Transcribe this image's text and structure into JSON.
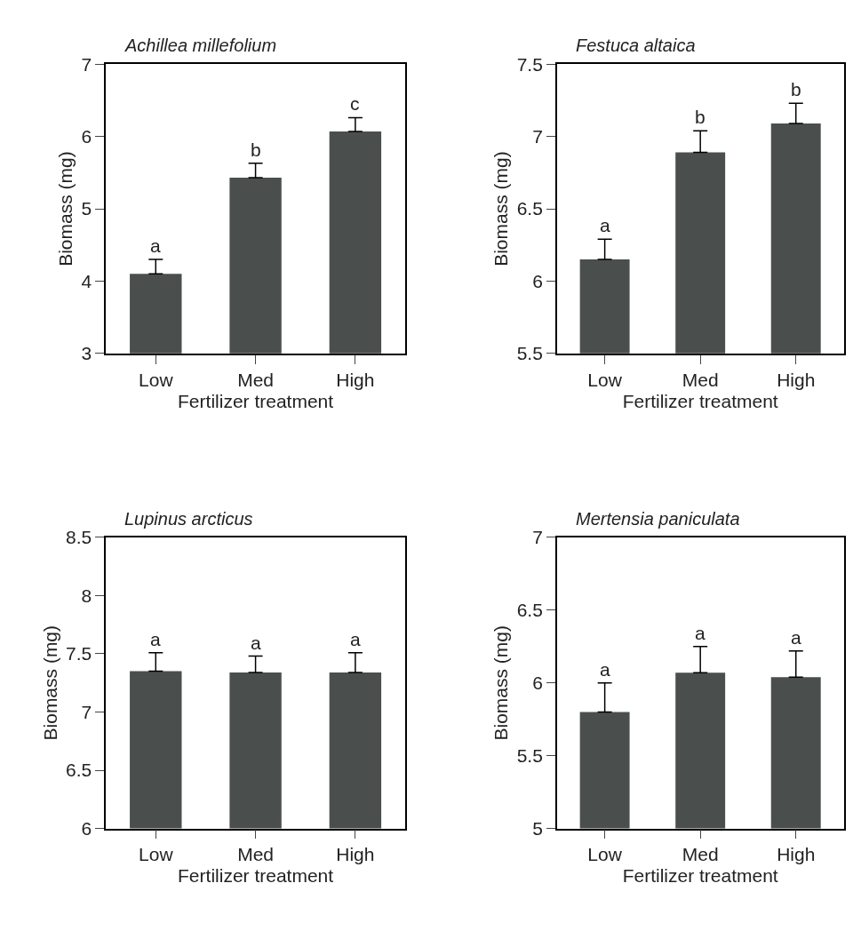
{
  "chart_data": [
    {
      "type": "bar",
      "title": "Achillea millefolium",
      "xlabel": "Fertilizer treatment",
      "ylabel": "Biomass (mg)",
      "categories": [
        "Low",
        "Med",
        "High"
      ],
      "values": [
        4.1,
        5.43,
        6.07
      ],
      "color": "#4a4f4d",
      "errors": [
        [
          4.1,
          4.3
        ],
        [
          5.43,
          5.63
        ],
        [
          6.07,
          6.26
        ]
      ],
      "ylim": [
        3,
        7
      ],
      "yticks": [
        3,
        4,
        5,
        6,
        7
      ],
      "annotations": [
        {
          "text": "a",
          "x": "Low",
          "y": 4.3
        },
        {
          "text": "b",
          "x": "Med",
          "y": 5.63
        },
        {
          "text": "c",
          "x": "High",
          "y": 6.26
        }
      ]
    },
    {
      "type": "bar",
      "title": "Festuca altaica",
      "xlabel": "Fertilizer treatment",
      "ylabel": "Biomass (mg)",
      "categories": [
        "Low",
        "Med",
        "High"
      ],
      "values": [
        6.15,
        6.89,
        7.09
      ],
      "color": "#4a4f4d",
      "errors": [
        [
          6.15,
          6.29
        ],
        [
          6.89,
          7.04
        ],
        [
          7.09,
          7.23
        ]
      ],
      "ylim": [
        5.5,
        7.5
      ],
      "yticks": [
        5.5,
        6,
        6.5,
        7,
        7.5
      ],
      "annotations": [
        {
          "text": "a",
          "x": "Low",
          "y": 6.29
        },
        {
          "text": "b",
          "x": "Med",
          "y": 7.04
        },
        {
          "text": "b",
          "x": "High",
          "y": 7.23
        }
      ]
    },
    {
      "type": "bar",
      "title": "Lupinus arcticus",
      "xlabel": "Fertilizer treatment",
      "ylabel": "Biomass (mg)",
      "categories": [
        "Low",
        "Med",
        "High"
      ],
      "values": [
        7.35,
        7.34,
        7.34
      ],
      "color": "#4a4f4d",
      "errors": [
        [
          7.35,
          7.51
        ],
        [
          7.34,
          7.48
        ],
        [
          7.34,
          7.51
        ]
      ],
      "ylim": [
        6,
        8.5
      ],
      "yticks": [
        6,
        6.5,
        7,
        7.5,
        8,
        8.5
      ],
      "annotations": [
        {
          "text": "a",
          "x": "Low",
          "y": 7.51
        },
        {
          "text": "a",
          "x": "Med",
          "y": 7.48
        },
        {
          "text": "a",
          "x": "High",
          "y": 7.51
        }
      ]
    },
    {
      "type": "bar",
      "title": "Mertensia paniculata",
      "xlabel": "Fertilizer treatment",
      "ylabel": "Biomass (mg)",
      "categories": [
        "Low",
        "Med",
        "High"
      ],
      "values": [
        5.8,
        6.07,
        6.04
      ],
      "color": "#4a4f4d",
      "errors": [
        [
          5.8,
          6.0
        ],
        [
          6.07,
          6.25
        ],
        [
          6.04,
          6.22
        ]
      ],
      "ylim": [
        5,
        7
      ],
      "yticks": [
        5,
        5.5,
        6,
        6.5,
        7
      ],
      "annotations": [
        {
          "text": "a",
          "x": "Low",
          "y": 6.0
        },
        {
          "text": "a",
          "x": "Med",
          "y": 6.25
        },
        {
          "text": "a",
          "x": "High",
          "y": 6.22
        }
      ]
    }
  ]
}
